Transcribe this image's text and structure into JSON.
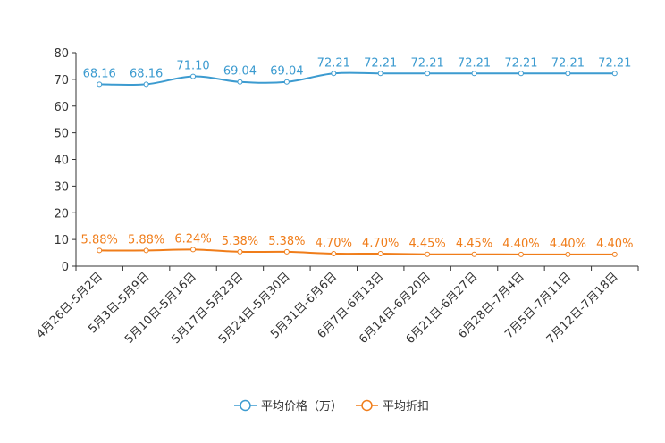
{
  "chart_data": {
    "type": "line",
    "title": "",
    "xlabel": "",
    "ylabel": "",
    "ylim": [
      0,
      80
    ],
    "yticks": [
      0,
      10,
      20,
      30,
      40,
      50,
      60,
      70,
      80
    ],
    "grid": false,
    "legend_position": "bottom-center",
    "categories": [
      "4月26日-5月2日",
      "5月3日-5月9日",
      "5月10日-5月16日",
      "5月17日-5月23日",
      "5月24日-5月30日",
      "5月31日-6月6日",
      "6月7日-6月13日",
      "6月14日-6月20日",
      "6月21日-6月27日",
      "6月28日-7月4日",
      "7月5日-7月11日",
      "7月12日-7月18日"
    ],
    "series": [
      {
        "name": "平均价格（万）",
        "color": "#3c9bd0",
        "values": [
          68.16,
          68.16,
          71.1,
          69.04,
          69.04,
          72.21,
          72.21,
          72.21,
          72.21,
          72.21,
          72.21,
          72.21
        ],
        "labels": [
          "68.16",
          "68.16",
          "71.10",
          "69.04",
          "69.04",
          "72.21",
          "72.21",
          "72.21",
          "72.21",
          "72.21",
          "72.21",
          "72.21"
        ]
      },
      {
        "name": "平均折扣",
        "color": "#f07d1a",
        "values": [
          5.88,
          5.88,
          6.24,
          5.38,
          5.38,
          4.7,
          4.7,
          4.45,
          4.45,
          4.4,
          4.4,
          4.4
        ],
        "labels": [
          "5.88%",
          "5.88%",
          "6.24%",
          "5.38%",
          "5.38%",
          "4.70%",
          "4.70%",
          "4.45%",
          "4.45%",
          "4.40%",
          "4.40%",
          "4.40%"
        ]
      }
    ]
  }
}
